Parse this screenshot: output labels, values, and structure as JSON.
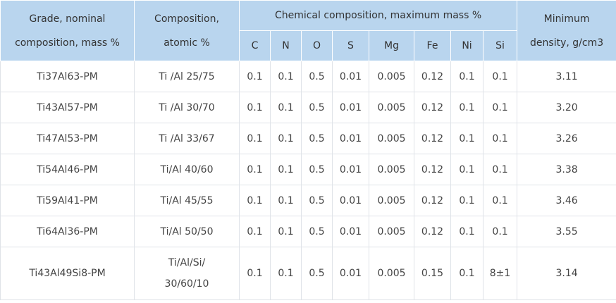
{
  "table": {
    "header": {
      "grade": "Grade, nominal\ncomposition, mass %",
      "composition": "Composition,\natomic %",
      "chemical": "Chemical composition, maximum mass %",
      "elements": [
        "C",
        "N",
        "O",
        "S",
        "Mg",
        "Fe",
        "Ni",
        "Si"
      ],
      "density": "Minimum\ndensity, g/cm3"
    },
    "rows": [
      [
        "Ti37Al63-PM",
        "Ti /Al 25/75",
        "0.1",
        "0.1",
        "0.5",
        "0.01",
        "0.005",
        "0.12",
        "0.1",
        "0.1",
        "3.11"
      ],
      [
        "Ti43Al57-PM",
        "Ti /Al 30/70",
        "0.1",
        "0.1",
        "0.5",
        "0.01",
        "0.005",
        "0.12",
        "0.1",
        "0.1",
        "3.20"
      ],
      [
        "Ti47Al53-PM",
        "Ti /Al 33/67",
        "0.1",
        "0.1",
        "0.5",
        "0.01",
        "0.005",
        "0.12",
        "0.1",
        "0.1",
        "3.26"
      ],
      [
        "Ti54Al46-PM",
        "Ti/Al 40/60",
        "0.1",
        "0.1",
        "0.5",
        "0.01",
        "0.005",
        "0.12",
        "0.1",
        "0.1",
        "3.38"
      ],
      [
        "Ti59Al41-PM",
        "Ti/Al 45/55",
        "0.1",
        "0.1",
        "0.5",
        "0.01",
        "0.005",
        "0.12",
        "0.1",
        "0.1",
        "3.46"
      ],
      [
        "Ti64Al36-PM",
        "Ti/Al 50/50",
        "0.1",
        "0.1",
        "0.5",
        "0.01",
        "0.005",
        "0.12",
        "0.1",
        "0.1",
        "3.55"
      ],
      [
        "Ti43Al49Si8-PM",
        "Ti/Al/Si/\n30/60/10",
        "0.1",
        "0.1",
        "0.5",
        "0.01",
        "0.005",
        "0.15",
        "0.1",
        "8±1",
        "3.14"
      ]
    ]
  }
}
